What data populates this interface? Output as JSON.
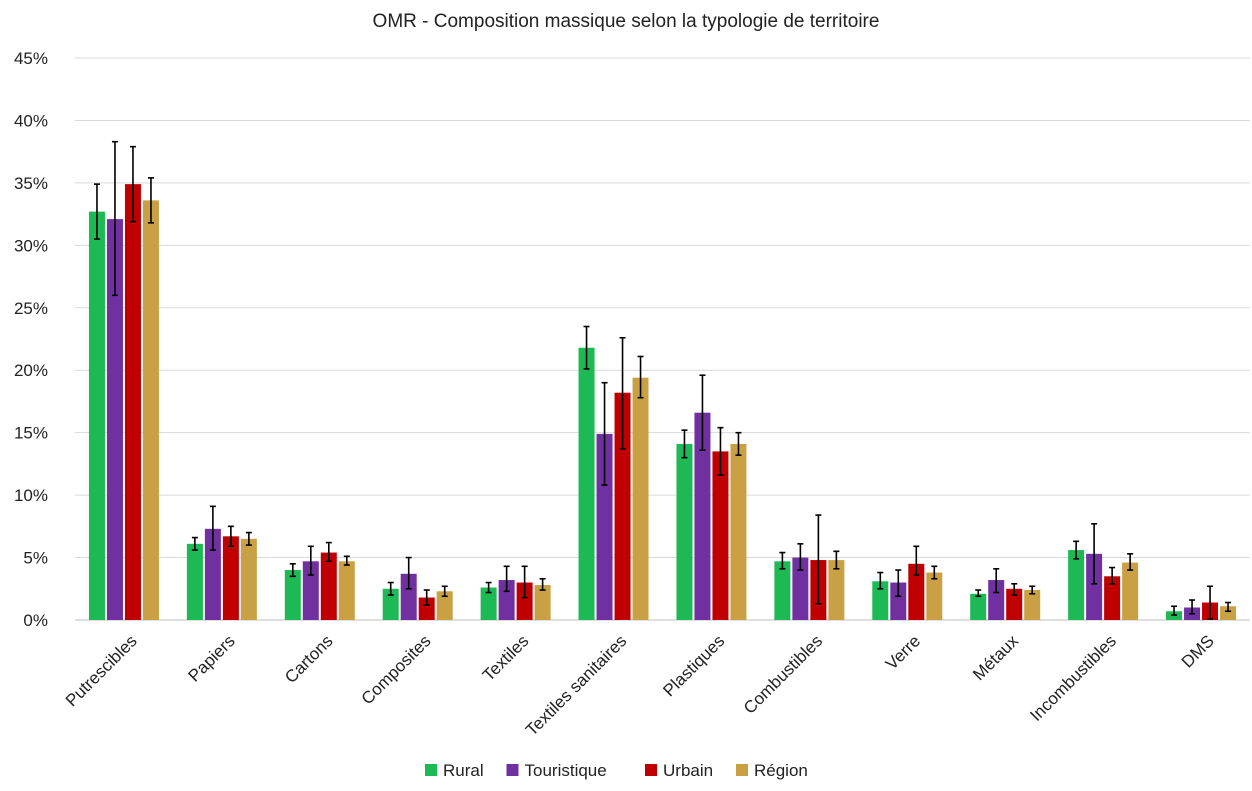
{
  "chart_data": {
    "type": "bar",
    "title": "OMR - Composition massique selon la typologie de territoire",
    "xlabel": "",
    "ylabel": "",
    "ylim": [
      0,
      45
    ],
    "y_unit": "%",
    "y_ticks": [
      "0%",
      "5%",
      "10%",
      "15%",
      "20%",
      "25%",
      "30%",
      "35%",
      "40%",
      "45%"
    ],
    "grid": true,
    "legend_position": "bottom",
    "error_bars": true,
    "categories": [
      "Putrescibles",
      "Papiers",
      "Cartons",
      "Composites",
      "Textiles",
      "Textiles sanitaires",
      "Plastiques",
      "Combustibles",
      "Verre",
      "Métaux",
      "Incombustibles",
      "DMS"
    ],
    "series": [
      {
        "name": "Rural",
        "color": "#1db954",
        "values": [
          32.7,
          6.1,
          4.0,
          2.5,
          2.6,
          21.8,
          14.1,
          4.7,
          3.1,
          2.1,
          5.6,
          0.7
        ],
        "err_low": [
          30.5,
          5.6,
          3.5,
          2.0,
          2.2,
          20.1,
          13.0,
          4.1,
          2.5,
          1.9,
          4.9,
          0.4
        ],
        "err_high": [
          34.9,
          6.6,
          4.5,
          3.0,
          3.0,
          23.5,
          15.2,
          5.4,
          3.8,
          2.4,
          6.3,
          1.1
        ]
      },
      {
        "name": "Touristique",
        "color": "#7030a0",
        "values": [
          32.1,
          7.3,
          4.7,
          3.7,
          3.2,
          14.9,
          16.6,
          5.0,
          3.0,
          3.2,
          5.3,
          1.0
        ],
        "err_low": [
          26.0,
          5.6,
          3.6,
          2.5,
          2.3,
          10.8,
          13.6,
          4.0,
          1.9,
          2.2,
          2.9,
          0.5
        ],
        "err_high": [
          38.3,
          9.1,
          5.9,
          5.0,
          4.3,
          19.0,
          19.6,
          6.1,
          4.0,
          4.1,
          7.7,
          1.6
        ]
      },
      {
        "name": "Urbain",
        "color": "#c00000",
        "values": [
          34.9,
          6.7,
          5.4,
          1.8,
          3.0,
          18.2,
          13.5,
          4.8,
          4.5,
          2.5,
          3.5,
          1.4
        ],
        "err_low": [
          31.9,
          5.9,
          4.7,
          1.2,
          1.8,
          13.7,
          11.6,
          1.3,
          3.6,
          2.0,
          2.9,
          0.1
        ],
        "err_high": [
          37.9,
          7.5,
          6.2,
          2.4,
          4.3,
          22.6,
          15.4,
          8.4,
          5.9,
          2.9,
          4.2,
          2.7
        ]
      },
      {
        "name": "Région",
        "color": "#c9a144",
        "values": [
          33.6,
          6.5,
          4.7,
          2.3,
          2.8,
          19.4,
          14.1,
          4.8,
          3.8,
          2.4,
          4.6,
          1.1
        ],
        "err_low": [
          31.8,
          6.0,
          4.4,
          1.9,
          2.4,
          17.8,
          13.2,
          4.1,
          3.3,
          2.1,
          4.0,
          0.7
        ],
        "err_high": [
          35.4,
          7.0,
          5.1,
          2.7,
          3.3,
          21.1,
          15.0,
          5.5,
          4.3,
          2.7,
          5.3,
          1.4
        ]
      }
    ]
  }
}
